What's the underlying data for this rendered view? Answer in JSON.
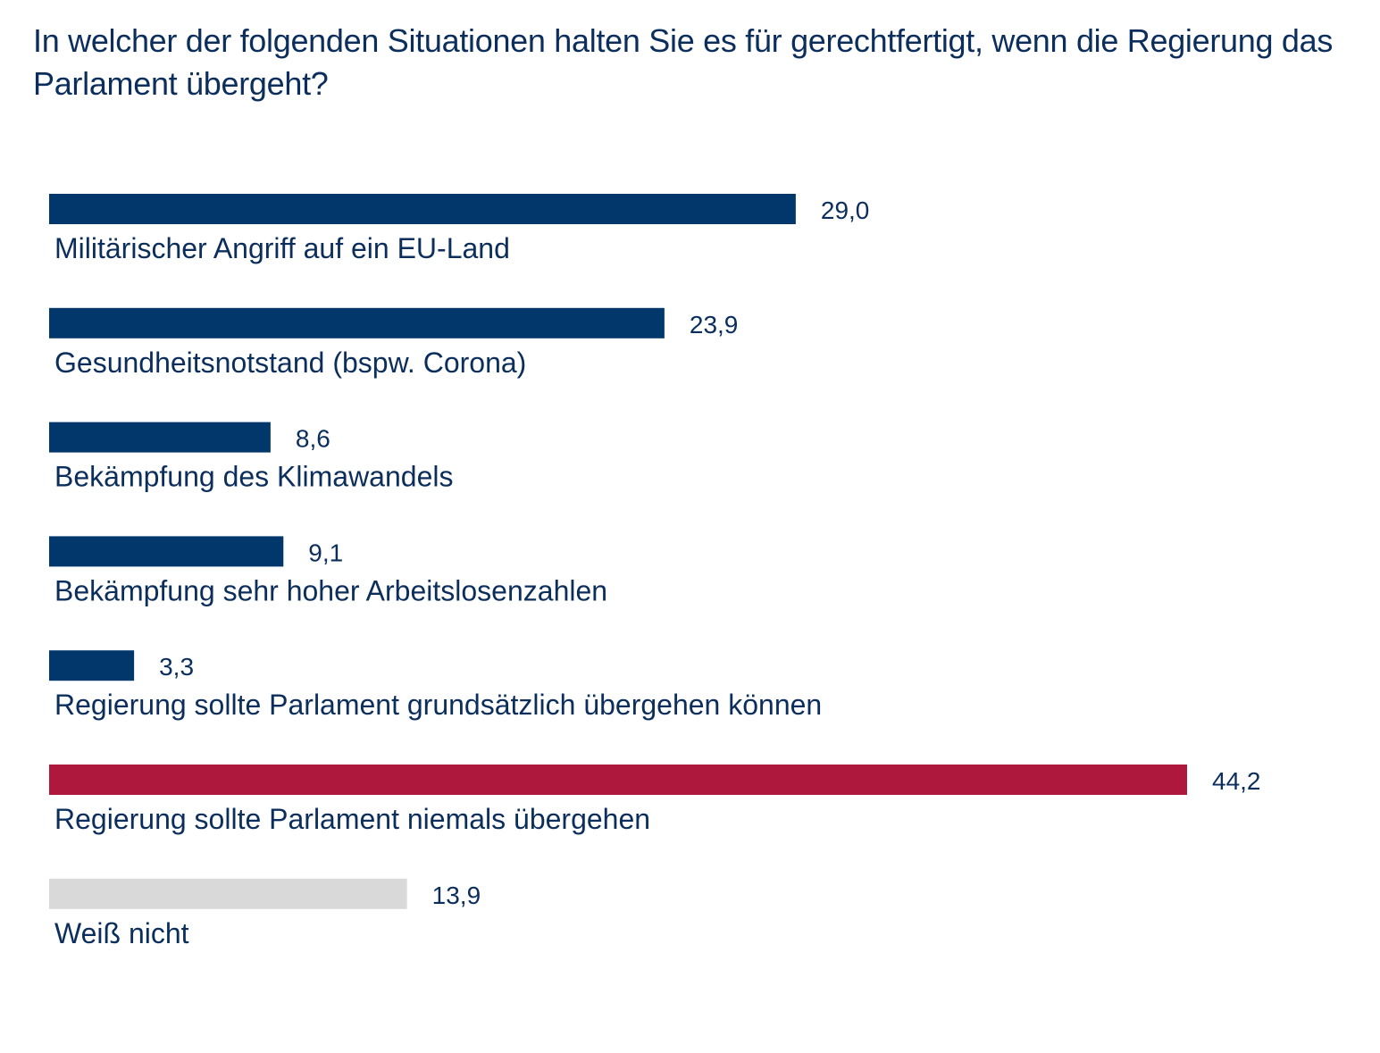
{
  "chart_data": {
    "type": "bar",
    "orientation": "horizontal",
    "title": "In welcher der folgenden Situationen halten Sie es für gerechtfertigt, wenn die Regierung das Parlament übergeht?",
    "categories": [
      "Militärischer Angriff auf ein EU-Land",
      "Gesundheitsnotstand (bspw. Corona)",
      "Bekämpfung des Klimawandels",
      "Bekämpfung sehr hoher Arbeitslosenzahlen",
      "Regierung sollte Parlament grundsätzlich übergehen können",
      "Regierung sollte Parlament niemals übergehen",
      "Weiß nicht"
    ],
    "values": [
      29.0,
      23.9,
      8.6,
      9.1,
      3.3,
      44.2,
      13.9
    ],
    "value_labels": [
      "29,0",
      "23,9",
      "8,6",
      "9,1",
      "3,3",
      "44,2",
      "13,9"
    ],
    "bar_colors": [
      "#02376b",
      "#02376b",
      "#02376b",
      "#02376b",
      "#02376b",
      "#ad183c",
      "#d9d9d9"
    ],
    "xlim": [
      0,
      44.2
    ],
    "grid": false,
    "xlabel": "",
    "ylabel": ""
  },
  "colors": {
    "text": "#0b2e5c",
    "primary_bar": "#02376b",
    "highlight_bar": "#ad183c",
    "neutral_bar": "#d9d9d9"
  }
}
